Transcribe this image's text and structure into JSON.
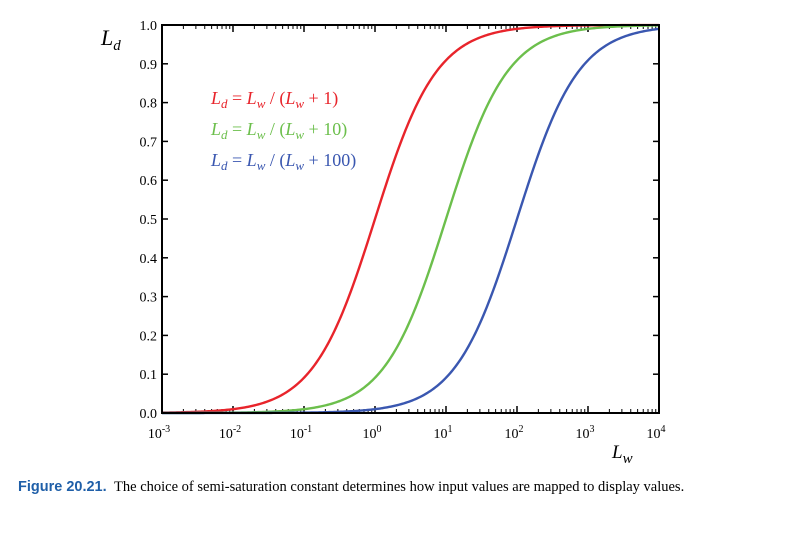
{
  "chart_data": {
    "type": "line",
    "x_scale": "log",
    "xlim": [
      0.001,
      10000
    ],
    "ylim": [
      0,
      1
    ],
    "xlabel": "L_w",
    "ylabel": "L_d",
    "x_ticks": [
      0.001,
      0.01,
      0.1,
      1,
      10,
      100,
      1000,
      10000
    ],
    "x_tick_labels": [
      {
        "base": "10",
        "exp": "-3"
      },
      {
        "base": "10",
        "exp": "-2"
      },
      {
        "base": "10",
        "exp": "-1"
      },
      {
        "base": "10",
        "exp": "0"
      },
      {
        "base": "10",
        "exp": "1"
      },
      {
        "base": "10",
        "exp": "2"
      },
      {
        "base": "10",
        "exp": "3"
      },
      {
        "base": "10",
        "exp": "4"
      }
    ],
    "y_ticks": [
      0,
      0.1,
      0.2,
      0.3,
      0.4,
      0.5,
      0.6,
      0.7,
      0.8,
      0.9,
      1.0
    ],
    "y_tick_labels": [
      "0.0",
      "0.1",
      "0.2",
      "0.3",
      "0.4",
      "0.5",
      "0.6",
      "0.7",
      "0.8",
      "0.9",
      "1.0"
    ],
    "grid": false,
    "series": [
      {
        "name": "L_d = L_w / (L_w + 1)",
        "semi_saturation": 1,
        "color": "#e8242b",
        "x": [
          0.001,
          0.01,
          0.1,
          1,
          10,
          100,
          1000,
          10000
        ],
        "y": [
          0.001,
          0.0099,
          0.0909,
          0.5,
          0.9091,
          0.9901,
          0.999,
          0.9999
        ]
      },
      {
        "name": "L_d = L_w / (L_w + 10)",
        "semi_saturation": 10,
        "color": "#6cbf4c",
        "x": [
          0.001,
          0.01,
          0.1,
          1,
          10,
          100,
          1000,
          10000
        ],
        "y": [
          0.0001,
          0.001,
          0.0099,
          0.0909,
          0.5,
          0.9091,
          0.9901,
          0.999
        ]
      },
      {
        "name": "L_d = L_w / (L_w + 100)",
        "semi_saturation": 100,
        "color": "#3a57b0",
        "x": [
          0.001,
          0.01,
          0.1,
          1,
          10,
          100,
          1000,
          10000
        ],
        "y": [
          1e-05,
          0.0001,
          0.001,
          0.0099,
          0.0909,
          0.5,
          0.9091,
          0.9901
        ]
      }
    ],
    "legend": [
      {
        "lhs": "L",
        "lhs_sub": "d",
        "eq": " = ",
        "num": "L",
        "num_sub": "w",
        "mid": " / (",
        "den": "L",
        "den_sub": "w",
        "tail": " + 1)",
        "color": "#e8242b"
      },
      {
        "lhs": "L",
        "lhs_sub": "d",
        "eq": " = ",
        "num": "L",
        "num_sub": "w",
        "mid": " / (",
        "den": "L",
        "den_sub": "w",
        "tail": " + 10)",
        "color": "#6cbf4c"
      },
      {
        "lhs": "L",
        "lhs_sub": "d",
        "eq": " = ",
        "num": "L",
        "num_sub": "w",
        "mid": " / (",
        "den": "L",
        "den_sub": "w",
        "tail": " + 100)",
        "color": "#3a57b0"
      }
    ],
    "legend_position": "top-left"
  },
  "caption": {
    "label": "Figure 20.21.",
    "text": "The choice of semi-saturation constant determines how input values are mapped to display values."
  }
}
